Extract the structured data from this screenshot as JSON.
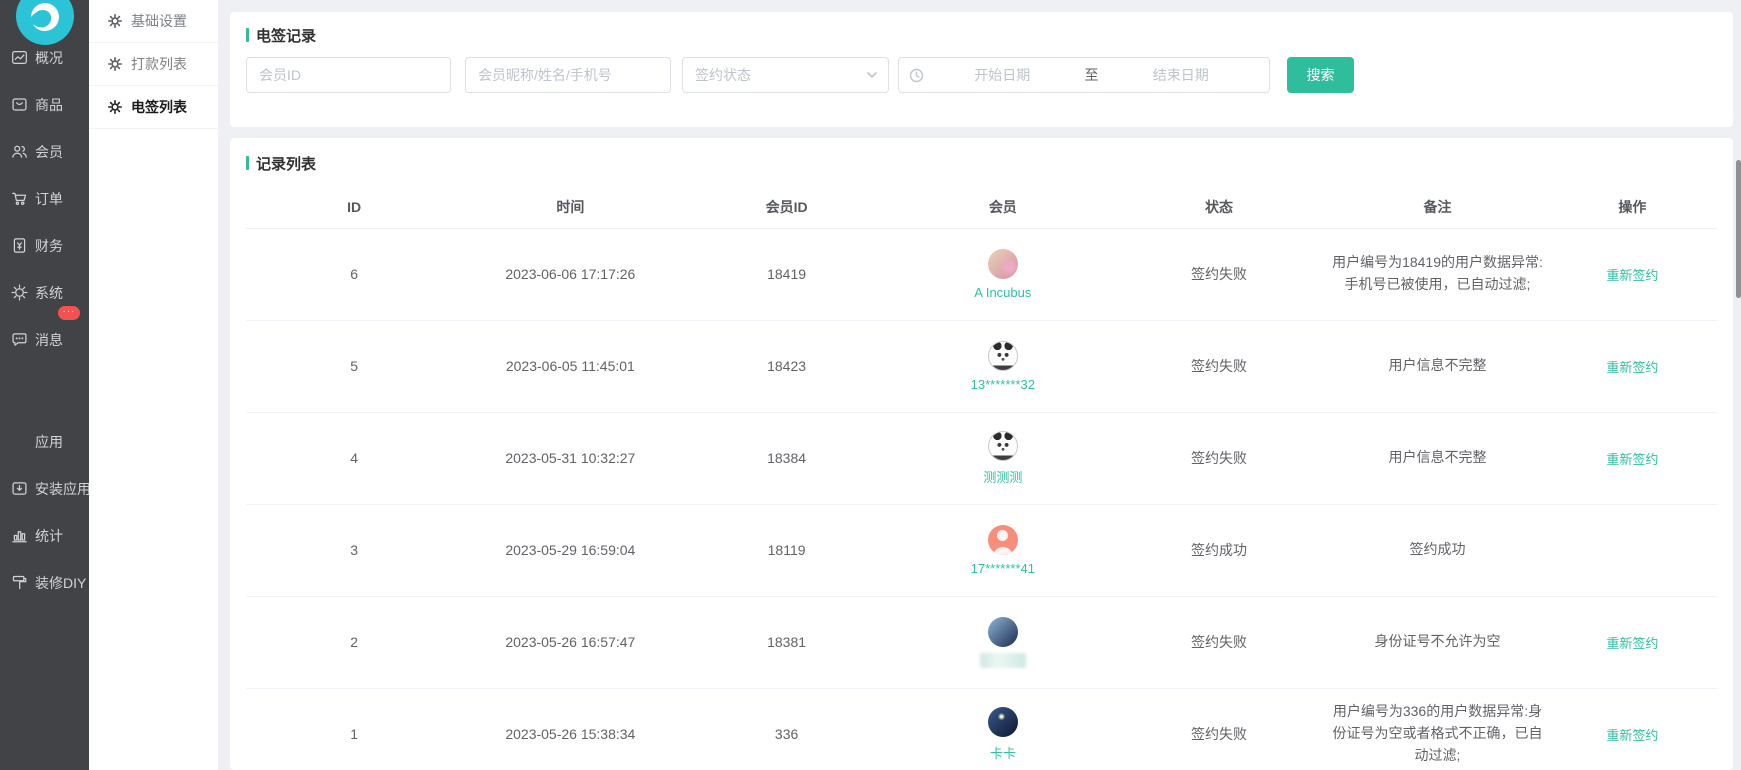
{
  "colors": {
    "accent_teal": "#2ebe9b",
    "link_teal": "#2fc2a0",
    "badge_red": "#f25252",
    "logo_cyan": "#2bc4d7",
    "sidebar_bg": "#424346",
    "apps_icon_colors": [
      "#e8564e",
      "#52c41a",
      "#faad14",
      "#1890ff"
    ]
  },
  "primary_sidebar": {
    "items": [
      {
        "name": "overview",
        "label": "概况",
        "icon": "overview-icon"
      },
      {
        "name": "goods",
        "label": "商品",
        "icon": "goods-icon"
      },
      {
        "name": "members",
        "label": "会员",
        "icon": "members-icon"
      },
      {
        "name": "orders",
        "label": "订单",
        "icon": "orders-icon"
      },
      {
        "name": "finance",
        "label": "财务",
        "icon": "finance-icon"
      },
      {
        "name": "system",
        "label": "系统",
        "icon": "system-icon"
      },
      {
        "name": "messages",
        "label": "消息",
        "icon": "message-icon",
        "badge": "···"
      }
    ],
    "lower_items": [
      {
        "name": "apps",
        "label": "应用",
        "icon": "apps-icon"
      },
      {
        "name": "install-app",
        "label": "安装应用",
        "icon": "install-app-icon"
      },
      {
        "name": "stats",
        "label": "统计",
        "icon": "stats-icon"
      },
      {
        "name": "decorate-diy",
        "label": "装修DIY",
        "icon": "diy-icon"
      }
    ]
  },
  "secondary_sidebar": {
    "items": [
      {
        "name": "basic-settings",
        "label": "基础设置",
        "icon": "gear-icon",
        "active": false
      },
      {
        "name": "payment-list",
        "label": "打款列表",
        "icon": "gear-icon",
        "active": false
      },
      {
        "name": "esign-list",
        "label": "电签列表",
        "icon": "gear-icon",
        "active": true
      }
    ]
  },
  "search": {
    "title": "电签记录",
    "member_id_placeholder": "会员ID",
    "nickname_placeholder": "会员昵称/姓名/手机号",
    "status_placeholder": "签约状态",
    "date_start_placeholder": "开始日期",
    "date_separator": "至",
    "date_end_placeholder": "结束日期",
    "search_button": "搜索"
  },
  "table": {
    "title": "记录列表",
    "columns": [
      "ID",
      "时间",
      "会员ID",
      "会员",
      "状态",
      "备注",
      "操作"
    ],
    "rows": [
      {
        "id": "6",
        "time": "2023-06-06 17:17:26",
        "member_id": "18419",
        "member_name": "A Incubus",
        "avatar": {
          "kind": "photo",
          "desc": "dog-with-flowers",
          "colors": [
            "#e7d3b8",
            "#d88fa4"
          ]
        },
        "status": "签约失败",
        "remark": "用户编号为18419的用户数据异常:\n手机号已被使用，已自动过滤;",
        "action": "重新签约"
      },
      {
        "id": "5",
        "time": "2023-06-05 11:45:01",
        "member_id": "18423",
        "member_name": "13*******32",
        "avatar": {
          "kind": "panda",
          "desc": "panda-meme"
        },
        "status": "签约失败",
        "remark": "用户信息不完整",
        "action": "重新签约"
      },
      {
        "id": "4",
        "time": "2023-05-31 10:32:27",
        "member_id": "18384",
        "member_name": "测测测",
        "avatar": {
          "kind": "panda",
          "desc": "panda-meme"
        },
        "status": "签约失败",
        "remark": "用户信息不完整",
        "action": "重新签约"
      },
      {
        "id": "3",
        "time": "2023-05-29 16:59:04",
        "member_id": "18119",
        "member_name": "17*******41",
        "avatar": {
          "kind": "person",
          "desc": "default-person"
        },
        "status": "签约成功",
        "remark": "签约成功",
        "action": null
      },
      {
        "id": "2",
        "time": "2023-05-26 16:57:47",
        "member_id": "18381",
        "member_name": "",
        "member_name_blurred": true,
        "avatar": {
          "kind": "photo",
          "desc": "blue-anime",
          "colors": [
            "#8fb7d8",
            "#1c2a4e"
          ]
        },
        "status": "签约失败",
        "remark": "身份证号不允许为空",
        "action": "重新签约"
      },
      {
        "id": "1",
        "time": "2023-05-26 15:38:34",
        "member_id": "336",
        "member_name": "卡卡",
        "avatar": {
          "kind": "photo",
          "desc": "night-sky-fireworks",
          "colors": [
            "#3a5a8c",
            "#0d1730"
          ]
        },
        "status": "签约失败",
        "remark": "用户编号为336的用户数据异常:身份证号为空或者格式不正确，已自动过滤;",
        "action": "重新签约"
      }
    ]
  }
}
